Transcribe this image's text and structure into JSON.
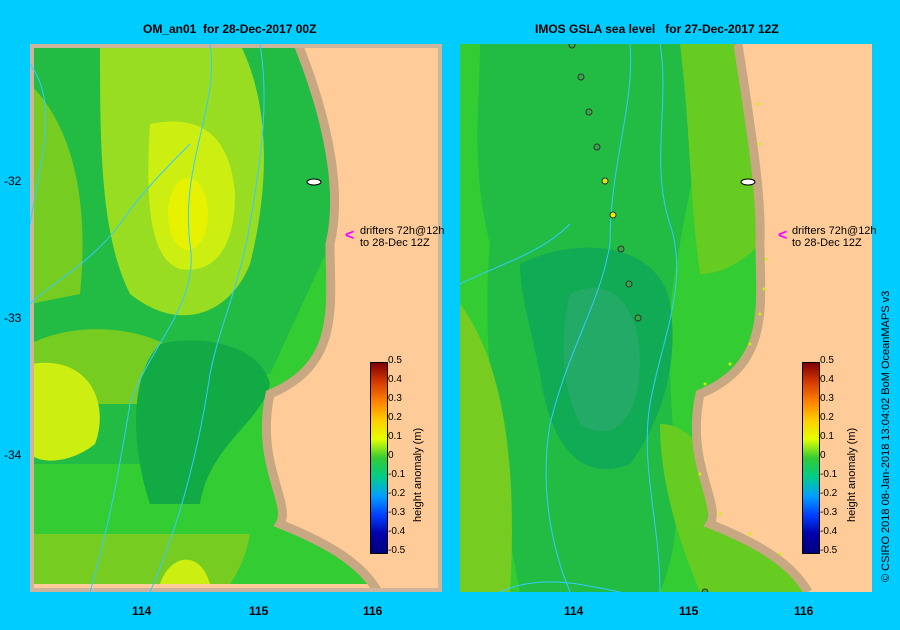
{
  "left_panel": {
    "title": "OM_an01  for 28-Dec-2017 00Z",
    "drifter_note_line1": "drifters 72h@12h",
    "drifter_note_line2": "to 28-Dec 12Z"
  },
  "right_panel": {
    "title": "IMOS GSLA sea level   for 27-Dec-2017 12Z",
    "drifter_note_line1": "drifters 72h@12h",
    "drifter_note_line2": "to 28-Dec 12Z"
  },
  "axes": {
    "lat_ticks": [
      "-32",
      "-33",
      "-34"
    ],
    "lon_ticks": [
      "114",
      "115",
      "116"
    ]
  },
  "colorbar": {
    "label": "height anomaly  (m)",
    "ticks": [
      "0.5",
      "0.4",
      "0.3",
      "0.2",
      "0.1",
      "0",
      "-0.1",
      "-0.2",
      "-0.3",
      "-0.4",
      "-0.5"
    ],
    "range": [
      -0.5,
      0.5
    ]
  },
  "credit": "© CSIRO 2018   08-Jan-2018 13:04:02 BoM OceanMAPS v3",
  "colors": {
    "background": "#00ccff",
    "land": "#ffcc99",
    "coast": "#c8a882",
    "drifter_arrow": "#ff00ff",
    "contour": "#33ccff"
  }
}
